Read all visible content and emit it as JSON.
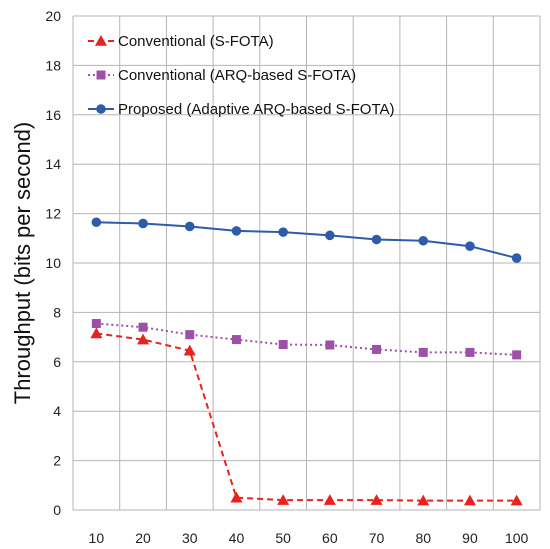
{
  "chart_data": {
    "type": "line",
    "ylabel": "Throughput (bits per second)",
    "xlabel": "",
    "x": [
      10,
      20,
      30,
      40,
      50,
      60,
      70,
      80,
      90,
      100
    ],
    "ylim": [
      0,
      20
    ],
    "yticks": [
      0,
      2,
      4,
      6,
      8,
      10,
      12,
      14,
      16,
      18,
      20
    ],
    "grid": true,
    "legend_position": "top-left",
    "series": [
      {
        "name": "Conventional (S-FOTA)",
        "values": [
          7.15,
          6.9,
          6.45,
          0.5,
          0.4,
          0.4,
          0.4,
          0.38,
          0.38,
          0.38
        ],
        "color": "#e8231f",
        "marker": "triangle",
        "line_style": "dashed"
      },
      {
        "name": "Conventional (ARQ-based S-FOTA)",
        "values": [
          7.55,
          7.4,
          7.1,
          6.9,
          6.7,
          6.68,
          6.5,
          6.38,
          6.38,
          6.28
        ],
        "color": "#9e4fa8",
        "marker": "square",
        "line_style": "dotted"
      },
      {
        "name": "Proposed (Adaptive ARQ-based S-FOTA)",
        "values": [
          11.65,
          11.6,
          11.48,
          11.3,
          11.25,
          11.12,
          10.95,
          10.9,
          10.68,
          10.2
        ],
        "color": "#2f5ca8",
        "marker": "circle",
        "line_style": "solid"
      }
    ]
  }
}
